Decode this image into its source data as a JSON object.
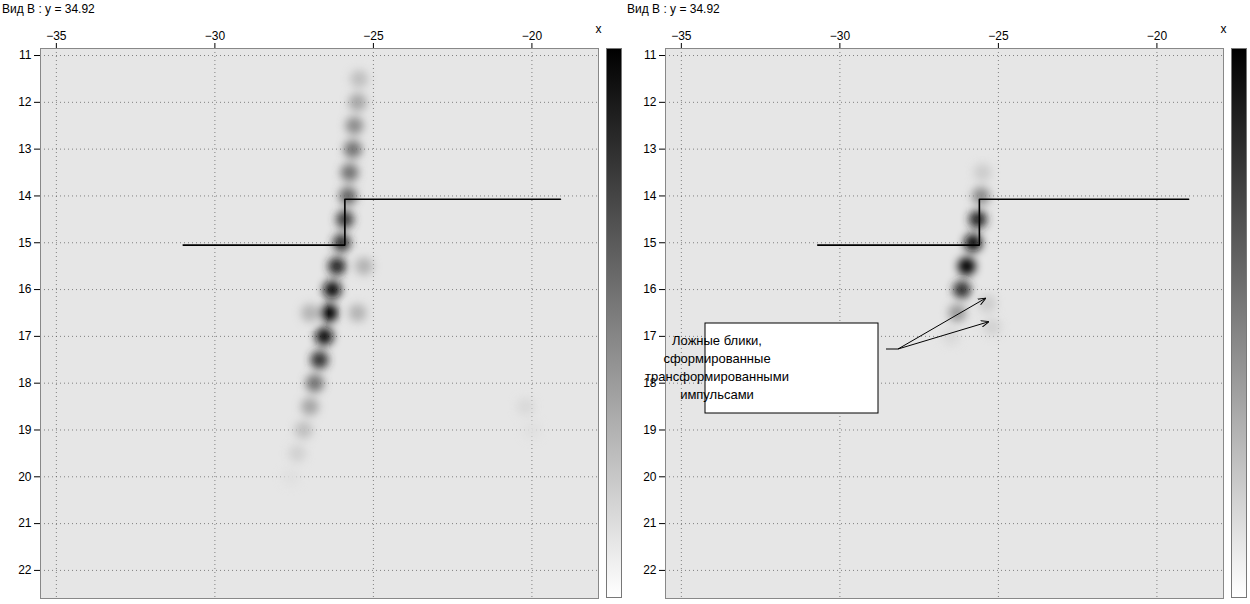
{
  "chart_data": [
    {
      "type": "heatmap",
      "title": "Вид B : y = 34.92",
      "xlabel": "x",
      "xlim": [
        -35.5,
        -17.9
      ],
      "ylim": [
        10.85,
        22.6
      ],
      "xticks": [
        -35,
        -30,
        -25,
        -20
      ],
      "yticks": [
        11,
        12,
        13,
        14,
        15,
        16,
        17,
        18,
        19,
        20,
        21,
        22
      ],
      "grid": true,
      "colorbar": {
        "range": [
          0,
          1
        ]
      },
      "cells": {
        "x": [
          -25.45,
          -25.5,
          -25.6,
          -25.65,
          -25.75,
          -25.8,
          -25.9,
          -26.0,
          -26.15,
          -26.3,
          -26.4,
          -26.55,
          -26.7,
          -26.85,
          -27.0,
          -27.2,
          -27.4,
          -27.6,
          -25.3,
          -25.5,
          -27.0,
          -20.2,
          -20.0
        ],
        "y": [
          11.5,
          12.0,
          12.5,
          13.0,
          13.5,
          14.0,
          14.5,
          15.0,
          15.5,
          16.0,
          16.5,
          17.0,
          17.5,
          18.0,
          18.5,
          19.0,
          19.5,
          20.0,
          15.5,
          16.5,
          16.5,
          18.5,
          19.0
        ],
        "values": [
          0.25,
          0.35,
          0.45,
          0.55,
          0.55,
          0.6,
          0.75,
          0.8,
          0.85,
          0.95,
          1.0,
          0.95,
          0.8,
          0.55,
          0.35,
          0.25,
          0.18,
          0.12,
          0.3,
          0.3,
          0.3,
          0.15,
          0.12
        ]
      },
      "boundary": {
        "x": [
          -31.0,
          -25.9,
          -25.9,
          -19.1
        ],
        "y": [
          15.05,
          15.05,
          14.07,
          14.07
        ]
      }
    },
    {
      "type": "heatmap",
      "title": "Вид B : y = 34.92",
      "xlabel": "x",
      "xlim": [
        -35.5,
        -17.9
      ],
      "ylim": [
        10.85,
        22.6
      ],
      "xticks": [
        -35,
        -30,
        -25,
        -20
      ],
      "yticks": [
        11,
        12,
        13,
        14,
        15,
        16,
        17,
        18,
        19,
        20,
        21,
        22
      ],
      "grid": true,
      "colorbar": {
        "range": [
          0,
          1
        ]
      },
      "cells": {
        "x": [
          -25.5,
          -25.55,
          -25.65,
          -25.8,
          -26.0,
          -26.15,
          -26.3,
          -25.35,
          -25.2,
          -26.5
        ],
        "y": [
          13.5,
          14.0,
          14.5,
          15.0,
          15.5,
          16.0,
          16.5,
          16.3,
          16.8,
          17.0
        ],
        "values": [
          0.2,
          0.45,
          0.85,
          0.95,
          1.0,
          0.8,
          0.4,
          0.2,
          0.18,
          0.15
        ]
      },
      "boundary": {
        "x": [
          -30.7,
          -25.6,
          -25.6,
          -19.0
        ],
        "y": [
          15.05,
          15.05,
          14.07,
          14.07
        ]
      },
      "annotations": [
        {
          "text": "Ложные блики, сформированные трансформированными импульсами",
          "arrow_targets": {
            "x": [
              -25.4,
              -25.3
            ],
            "y": [
              16.2,
              16.7
            ]
          }
        }
      ]
    }
  ]
}
